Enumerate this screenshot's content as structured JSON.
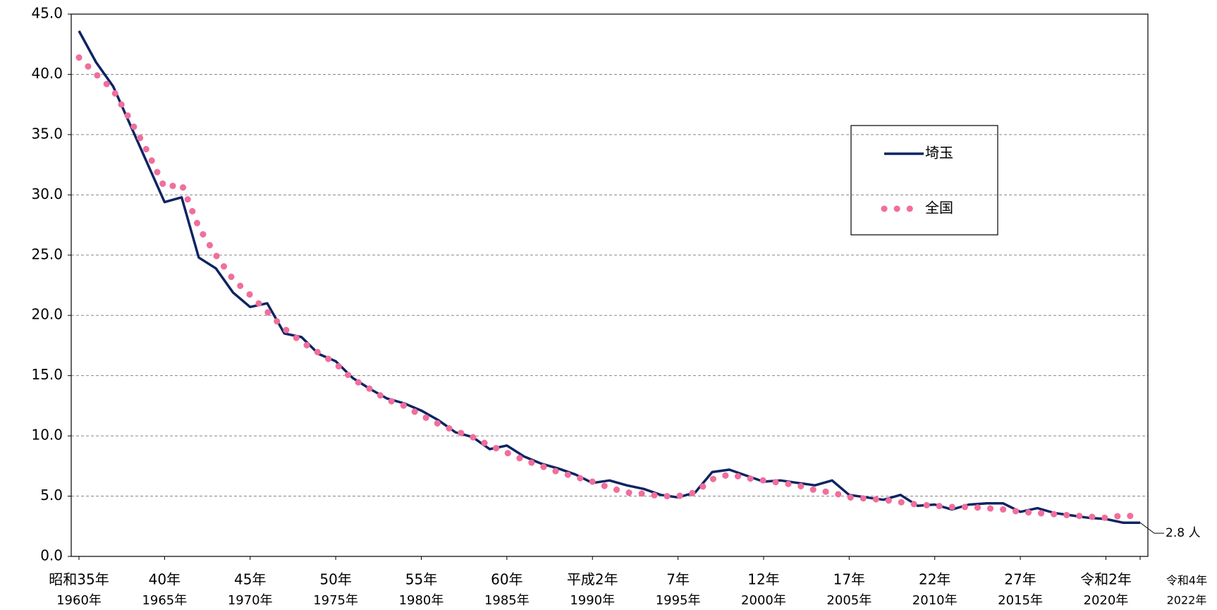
{
  "chart_data": {
    "type": "line",
    "categories": [
      "昭和35年",
      null,
      null,
      null,
      null,
      "40年",
      null,
      null,
      null,
      null,
      "45年",
      null,
      null,
      null,
      null,
      "50年",
      null,
      null,
      null,
      null,
      "55年",
      null,
      null,
      null,
      null,
      "60年",
      null,
      null,
      null,
      null,
      "平成2年",
      null,
      null,
      null,
      null,
      "7年",
      null,
      null,
      null,
      null,
      "12年",
      null,
      null,
      null,
      null,
      "17年",
      null,
      null,
      null,
      null,
      "22年",
      null,
      null,
      null,
      null,
      "27年",
      null,
      null,
      null,
      null,
      "令和2年",
      null,
      "令和4年"
    ],
    "categories_sub": [
      "1960年",
      null,
      null,
      null,
      null,
      "1965年",
      null,
      null,
      null,
      null,
      "1970年",
      null,
      null,
      null,
      null,
      "1975年",
      null,
      null,
      null,
      null,
      "1980年",
      null,
      null,
      null,
      null,
      "1985年",
      null,
      null,
      null,
      null,
      "1990年",
      null,
      null,
      null,
      null,
      "1995年",
      null,
      null,
      null,
      null,
      "2000年",
      null,
      null,
      null,
      null,
      "2005年",
      null,
      null,
      null,
      null,
      "2010年",
      null,
      null,
      null,
      null,
      "2015年",
      null,
      null,
      null,
      null,
      "2020年",
      null,
      "2022年"
    ],
    "series": [
      {
        "name": "埼玉",
        "color": "#0d2463",
        "style": "solid",
        "values": [
          43.6,
          41.0,
          39.0,
          35.8,
          32.6,
          29.4,
          29.8,
          24.8,
          23.9,
          21.9,
          20.7,
          21.0,
          18.5,
          18.2,
          16.8,
          16.2,
          14.8,
          13.9,
          13.1,
          12.7,
          12.1,
          11.3,
          10.3,
          9.9,
          8.9,
          9.2,
          8.3,
          7.7,
          7.3,
          6.8,
          6.1,
          6.3,
          5.9,
          5.6,
          5.1,
          4.9,
          5.3,
          7.0,
          7.2,
          6.7,
          6.2,
          6.3,
          6.1,
          5.9,
          6.3,
          5.1,
          4.9,
          4.7,
          5.1,
          4.2,
          4.3,
          3.9,
          4.3,
          4.4,
          4.4,
          3.7,
          4.0,
          3.6,
          3.4,
          3.2,
          3.1,
          2.8,
          2.8
        ]
      },
      {
        "name": "全国",
        "color": "#f06e9c",
        "style": "dotted",
        "values": [
          41.4,
          40.0,
          38.7,
          36.2,
          33.6,
          30.6,
          30.9,
          27.3,
          25.0,
          23.0,
          21.7,
          20.3,
          18.9,
          17.8,
          16.9,
          16.0,
          14.7,
          13.9,
          13.0,
          12.5,
          11.7,
          11.0,
          10.4,
          9.9,
          9.2,
          8.6,
          8.0,
          7.5,
          7.0,
          6.6,
          6.2,
          5.7,
          5.3,
          5.2,
          5.0,
          5.0,
          5.3,
          6.4,
          6.8,
          6.5,
          6.3,
          6.1,
          5.9,
          5.5,
          5.3,
          4.9,
          4.8,
          4.7,
          4.5,
          4.3,
          4.2,
          4.1,
          4.1,
          4.0,
          3.9,
          3.7,
          3.6,
          3.5,
          3.4,
          3.3,
          3.2,
          3.4,
          3.3
        ]
      }
    ],
    "annotation": "2.8 人",
    "ylim": [
      0,
      45
    ],
    "yticks": [
      {
        "value": 0,
        "label": "0.0"
      },
      {
        "value": 5,
        "label": "5.0"
      },
      {
        "value": 10,
        "label": "10.0"
      },
      {
        "value": 15,
        "label": "15.0"
      },
      {
        "value": 20,
        "label": "20.0"
      },
      {
        "value": 25,
        "label": "25.0"
      },
      {
        "value": 30,
        "label": "30.0"
      },
      {
        "value": 35,
        "label": "35.0"
      },
      {
        "value": 40,
        "label": "40.0"
      },
      {
        "value": 45,
        "label": "45.0"
      }
    ],
    "grid": true
  }
}
